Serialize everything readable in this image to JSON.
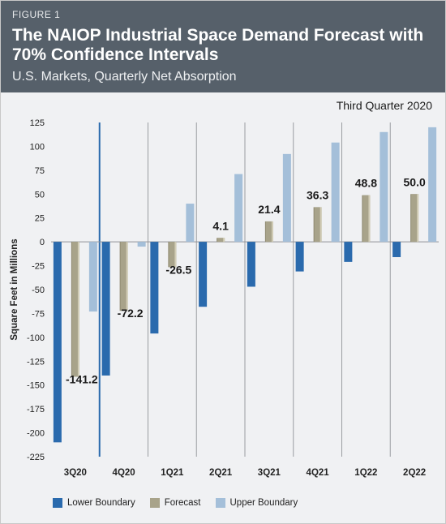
{
  "figure_label": "FIGURE 1",
  "title": "The NAIOP Industrial Space Demand Forecast with 70% Confidence Intervals",
  "subtitle": "U.S. Markets, Quarterly Net Absorption",
  "period": "Third Quarter 2020",
  "colors": {
    "lower": "#2a6aad",
    "forecast": "#a8a38a",
    "upper": "#a4bfd9",
    "header_bg": "#56606a",
    "panel_bg": "#f0f1f3"
  },
  "chart_data": {
    "type": "bar",
    "categories": [
      "3Q20",
      "4Q20",
      "1Q21",
      "2Q21",
      "3Q21",
      "4Q21",
      "1Q22",
      "2Q22"
    ],
    "series": [
      {
        "name": "Lower Boundary",
        "values": [
          -210,
          -140,
          -96,
          -68,
          -47,
          -31,
          -21,
          -16
        ]
      },
      {
        "name": "Forecast",
        "values": [
          -141.2,
          -72.2,
          -26.5,
          4.1,
          21.4,
          36.3,
          48.8,
          50.0
        ]
      },
      {
        "name": "Upper Boundary",
        "values": [
          -73,
          -5,
          40,
          71,
          92,
          104,
          115,
          120
        ]
      }
    ],
    "data_labels": [
      "-141.2",
      "-72.2",
      "-26.5",
      "4.1",
      "21.4",
      "36.3",
      "48.8",
      "50.0"
    ],
    "ylabel": "Square Feet in Millions",
    "ylim": [
      -225,
      125
    ],
    "yticks": [
      125,
      100,
      75,
      50,
      25,
      0,
      -25,
      -50,
      -75,
      -100,
      -125,
      -150,
      -175,
      -200,
      -225
    ],
    "grid": false,
    "legend": "bottom"
  }
}
